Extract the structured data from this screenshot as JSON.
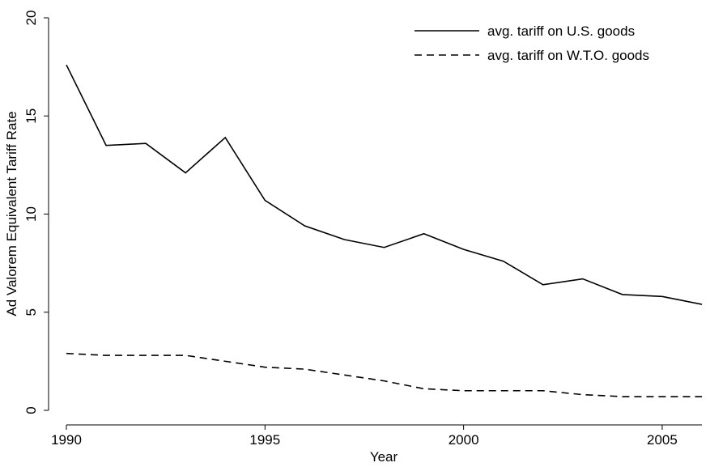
{
  "chart_data": {
    "type": "line",
    "x_label": "Year",
    "y_label": "Ad Valorem Equivalent Tariff Rate",
    "x": [
      1990,
      1991,
      1992,
      1993,
      1994,
      1995,
      1996,
      1997,
      1998,
      1999,
      2000,
      2001,
      2002,
      2003,
      2004,
      2005,
      2006
    ],
    "series": [
      {
        "name": "avg. tariff on U.S. goods",
        "color": "#000000",
        "dash": "solid",
        "values": [
          17.6,
          13.5,
          13.6,
          12.1,
          13.9,
          10.7,
          9.4,
          8.7,
          8.3,
          9.0,
          8.2,
          7.6,
          6.4,
          6.7,
          5.9,
          5.8,
          5.4
        ]
      },
      {
        "name": "avg. tariff on W.T.O. goods",
        "color": "#000000",
        "dash": "dashed",
        "values": [
          2.9,
          2.8,
          2.8,
          2.8,
          2.5,
          2.2,
          2.1,
          1.8,
          1.5,
          1.1,
          1.0,
          1.0,
          1.0,
          0.8,
          0.7,
          0.7,
          0.7
        ]
      }
    ],
    "xlim": [
      1990,
      2006
    ],
    "xticks": [
      1990,
      1995,
      2000,
      2005
    ],
    "ylim": [
      0,
      20
    ],
    "yticks": [
      0,
      5,
      10,
      15,
      20
    ],
    "grid": false,
    "legend": "top-right"
  }
}
